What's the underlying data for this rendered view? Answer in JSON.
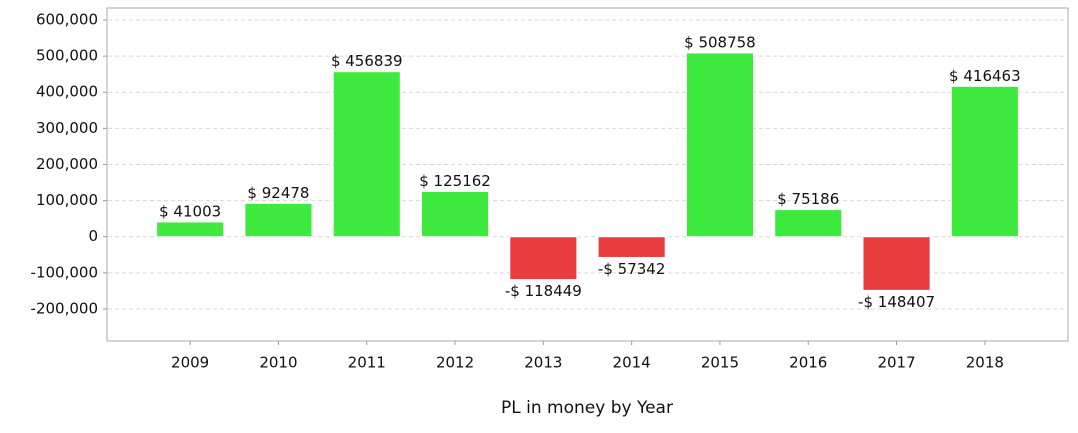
{
  "chart_data": {
    "type": "bar",
    "x_label": "PL in money by Year",
    "categories": [
      "2009",
      "2010",
      "2011",
      "2012",
      "2013",
      "2014",
      "2015",
      "2016",
      "2017",
      "2018"
    ],
    "values": [
      41003,
      92478,
      456839,
      125162,
      -118449,
      -57342,
      508758,
      75186,
      -148407,
      416463
    ],
    "value_labels": [
      "$ 41003",
      "$ 92478",
      "$ 456839",
      "$ 125162",
      "-$ 118449",
      "-$ 57342",
      "$ 508758",
      "$ 75186",
      "-$ 148407",
      "$ 416463"
    ],
    "colors": [
      "#3fea3f",
      "#3fea3f",
      "#3fea3f",
      "#3fea3f",
      "#e83c3f",
      "#e83c3f",
      "#3fea3f",
      "#3fea3f",
      "#e83c3f",
      "#3fea3f"
    ],
    "ylim": [
      -288600,
      633200
    ],
    "yticks": [
      {
        "value": -200000,
        "label": "-200,000"
      },
      {
        "value": -100000,
        "label": "-100,000"
      },
      0,
      {
        "value": 100000,
        "label": "100,000"
      },
      {
        "value": 200000,
        "label": "200,000"
      },
      {
        "value": 300000,
        "label": "300,000"
      },
      {
        "value": 400000,
        "label": "400,000"
      },
      {
        "value": 500000,
        "label": "500,000"
      },
      {
        "value": 600000,
        "label": "600,000"
      }
    ],
    "grid": true
  }
}
